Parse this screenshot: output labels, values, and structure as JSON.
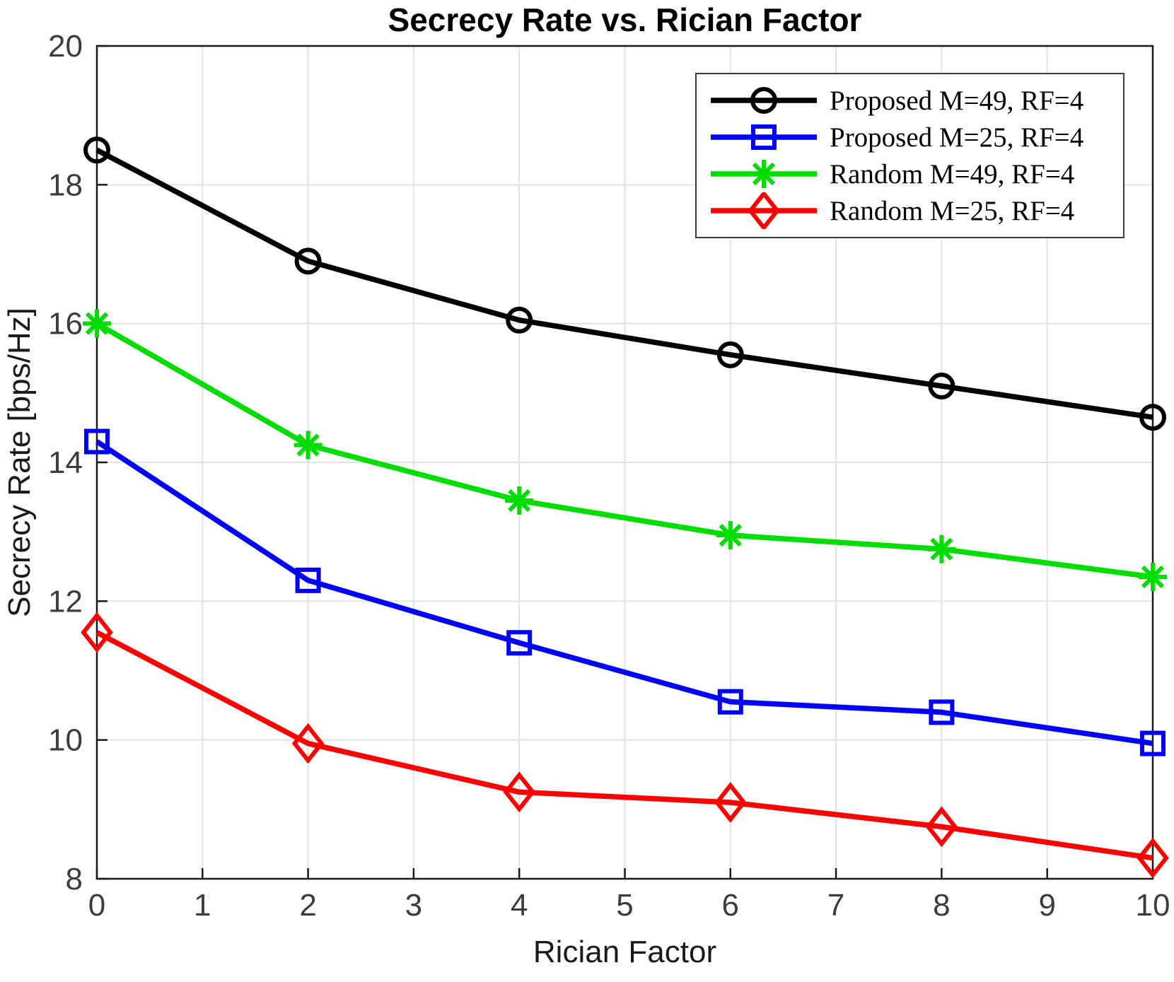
{
  "chart_data": {
    "type": "line",
    "title": "Secrecy Rate vs. Rician Factor",
    "xlabel": "Rician Factor",
    "ylabel": "Secrecy Rate [bps/Hz]",
    "xlim": [
      0,
      10
    ],
    "ylim": [
      8,
      20
    ],
    "xticks": [
      0,
      1,
      2,
      3,
      4,
      5,
      6,
      7,
      8,
      9,
      10
    ],
    "yticks": [
      8,
      10,
      12,
      14,
      16,
      18,
      20
    ],
    "grid": true,
    "legend_position": "top-right",
    "x": [
      0,
      2,
      4,
      6,
      8,
      10
    ],
    "series": [
      {
        "name": "Proposed M=49, RF=4",
        "color": "#000000",
        "marker": "circle",
        "values": [
          18.5,
          16.9,
          16.05,
          15.55,
          15.1,
          14.65
        ]
      },
      {
        "name": "Proposed M=25, RF=4",
        "color": "#0000ff",
        "marker": "square",
        "values": [
          14.3,
          12.3,
          11.4,
          10.55,
          10.4,
          9.95
        ]
      },
      {
        "name": "Random M=49, RF=4",
        "color": "#00dd00",
        "marker": "asterisk",
        "values": [
          16.0,
          14.25,
          13.45,
          12.95,
          12.75,
          12.35
        ]
      },
      {
        "name": "Random M=25, RF=4",
        "color": "#ff0000",
        "marker": "diamond",
        "values": [
          11.55,
          9.95,
          9.25,
          9.1,
          8.75,
          8.3
        ]
      }
    ],
    "style": {
      "grid_color": "#e2e2e2",
      "axis_color": "#1a1a1a",
      "tick_label_color": "#3c3c3c"
    }
  }
}
